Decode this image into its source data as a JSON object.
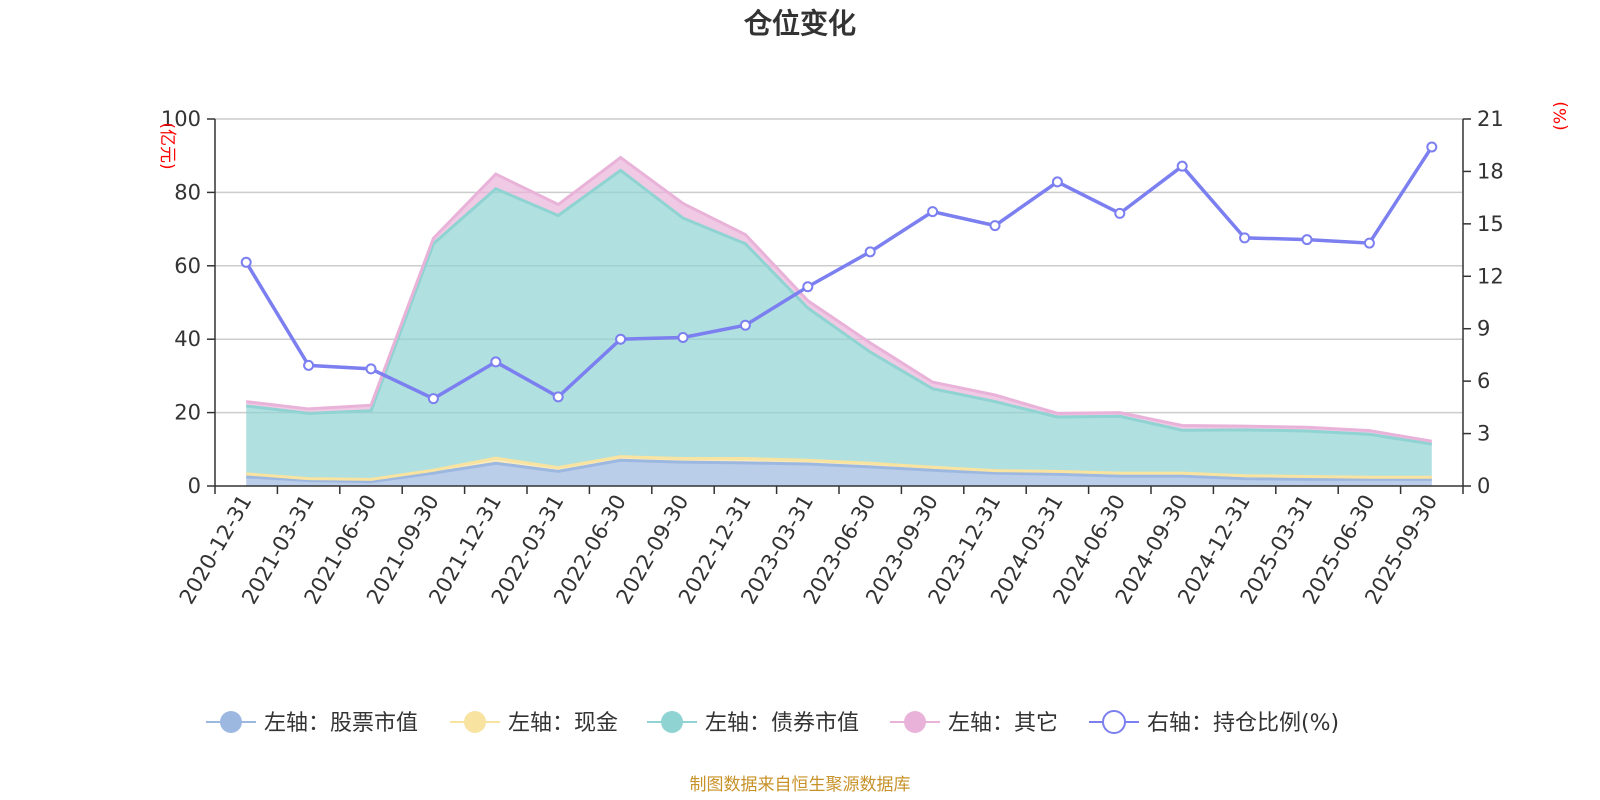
{
  "chart_data": {
    "type": "area",
    "title": "仓位变化",
    "source": "制图数据来自恒生聚源数据库",
    "left_axis": {
      "unit": "(亿元)",
      "min": 0,
      "max": 100,
      "ticks": [
        "0",
        "20",
        "40",
        "60",
        "80",
        "100"
      ]
    },
    "right_axis": {
      "unit": "(%)",
      "min": 0,
      "max": 21,
      "ticks": [
        "0",
        "3",
        "6",
        "9",
        "12",
        "15",
        "18",
        "21"
      ]
    },
    "categories": [
      "2020-12-31",
      "2021-03-31",
      "2021-06-30",
      "2021-09-30",
      "2021-12-31",
      "2022-03-31",
      "2022-06-30",
      "2022-09-30",
      "2022-12-31",
      "2023-03-31",
      "2023-06-30",
      "2023-09-30",
      "2023-12-31",
      "2024-03-31",
      "2024-06-30",
      "2024-09-30",
      "2024-12-31",
      "2025-03-31",
      "2025-06-30",
      "2025-09-30"
    ],
    "series": [
      {
        "name": "左轴：股票市值",
        "axis": "left",
        "kind": "stack",
        "color": "#9db8e0",
        "values": [
          2.5,
          1.5,
          1.2,
          3.5,
          6.2,
          4.0,
          7.0,
          6.5,
          6.3,
          6.0,
          5.2,
          4.3,
          3.5,
          3.2,
          2.7,
          2.7,
          2.0,
          1.8,
          1.8,
          1.8
        ]
      },
      {
        "name": "左轴：现金",
        "axis": "left",
        "kind": "stack",
        "color": "#f8e3a1",
        "values": [
          0.8,
          0.5,
          0.6,
          0.8,
          1.4,
          1.0,
          1.0,
          1.0,
          1.2,
          1.0,
          1.0,
          0.8,
          0.7,
          0.8,
          0.8,
          0.8,
          0.8,
          0.8,
          0.6,
          0.6
        ]
      },
      {
        "name": "左轴：债券市值",
        "axis": "left",
        "kind": "stack",
        "color": "#8fd3d2",
        "values": [
          18.5,
          17.8,
          18.7,
          61.7,
          73.4,
          68.7,
          78.0,
          65.5,
          58.5,
          41.5,
          30.3,
          21.4,
          18.8,
          14.8,
          15.5,
          11.7,
          12.5,
          12.4,
          11.7,
          9.0
        ]
      },
      {
        "name": "左轴：其它",
        "axis": "left",
        "kind": "stack",
        "color": "#e9b3d9",
        "values": [
          1.2,
          1.2,
          1.5,
          1.5,
          4.0,
          3.0,
          3.5,
          4.0,
          2.5,
          2.0,
          2.5,
          1.8,
          1.8,
          1.0,
          1.0,
          1.3,
          1.0,
          1.0,
          1.0,
          0.8
        ]
      },
      {
        "name": "右轴：持仓比例(%)",
        "axis": "right",
        "kind": "line",
        "color": "#7b7ff0",
        "values": [
          12.8,
          6.9,
          6.7,
          5.0,
          7.1,
          5.1,
          8.4,
          8.5,
          9.2,
          11.4,
          13.4,
          15.7,
          14.9,
          17.4,
          15.6,
          18.3,
          14.2,
          14.1,
          13.9,
          19.4
        ]
      }
    ]
  }
}
